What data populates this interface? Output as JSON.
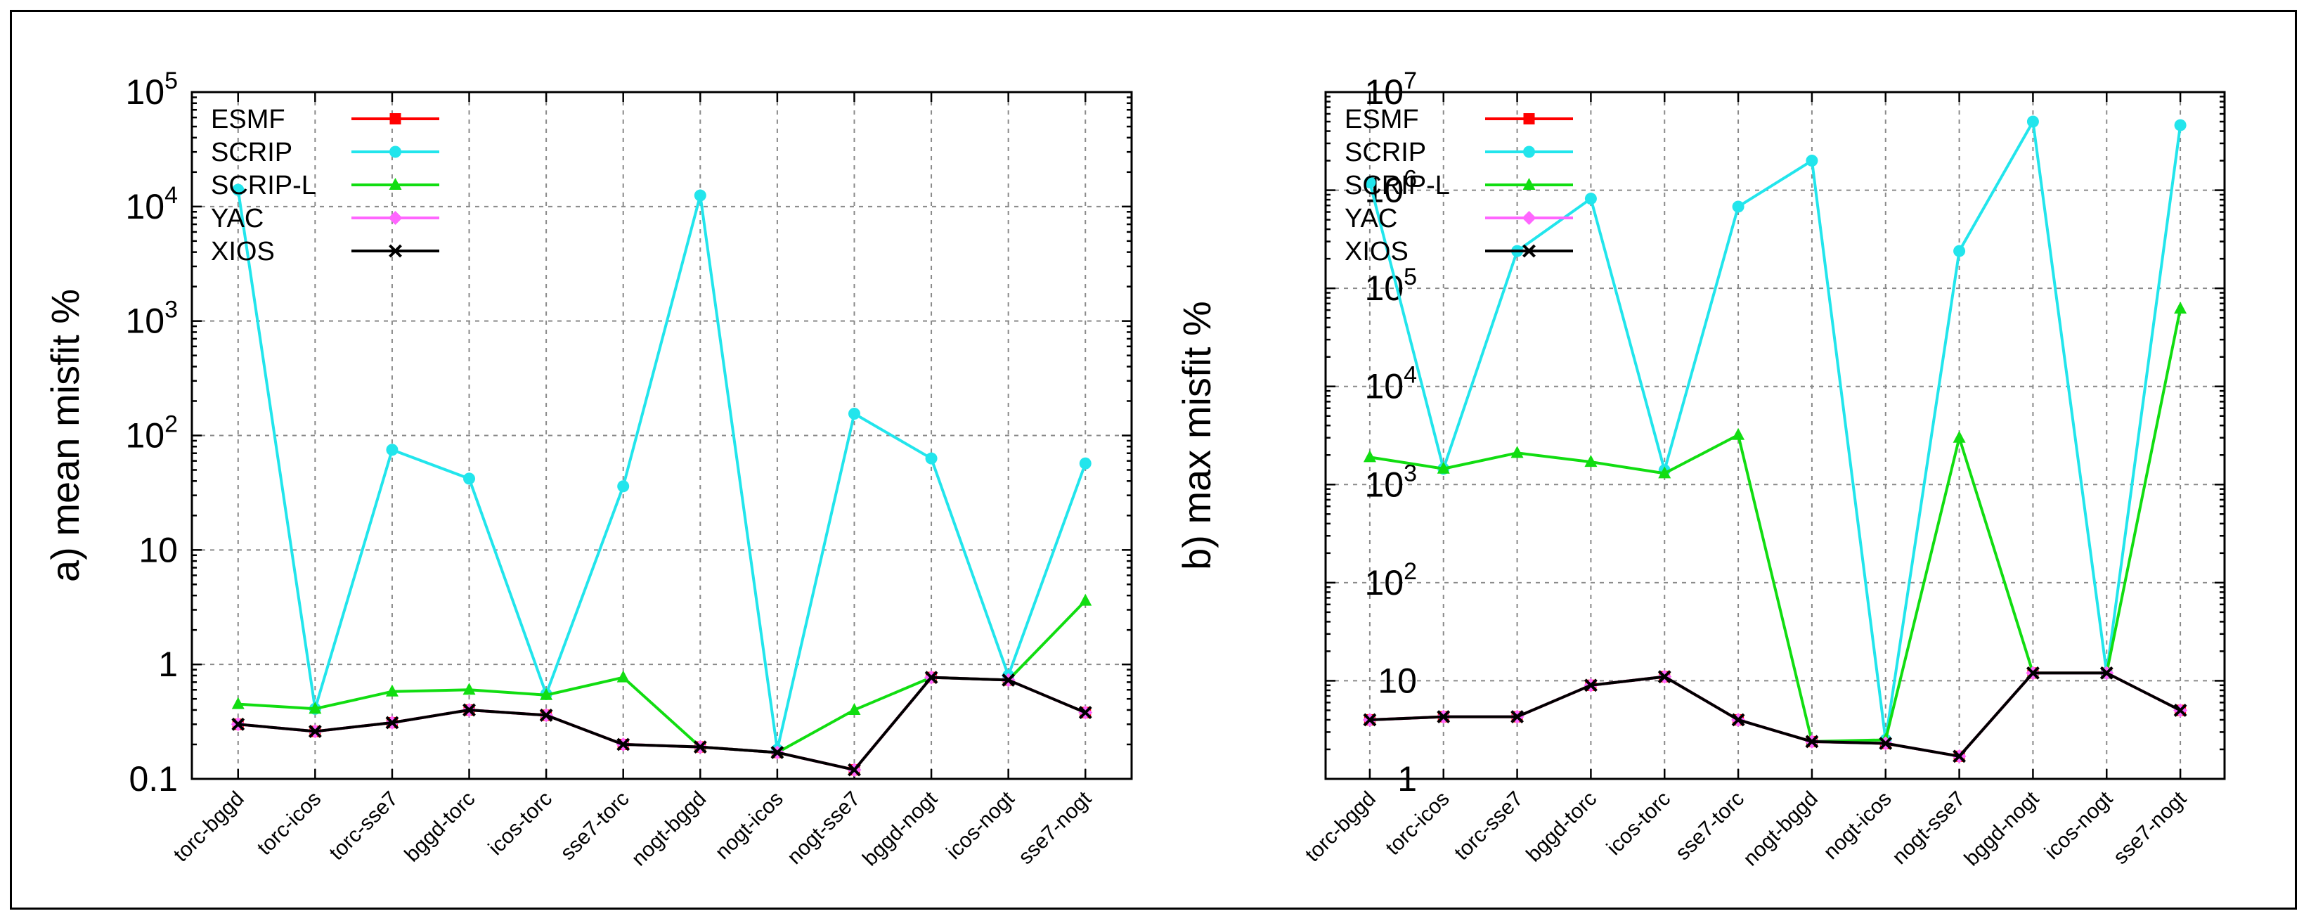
{
  "chart_data": [
    {
      "type": "line",
      "panel": "a",
      "ylabel": "a) mean misfit %",
      "yscale": "log",
      "ylim": [
        0.1,
        100000
      ],
      "ytick_labels": [
        {
          "value": 0.1,
          "base": "0.1",
          "exp": ""
        },
        {
          "value": 1,
          "base": "1",
          "exp": ""
        },
        {
          "value": 10,
          "base": "10",
          "exp": ""
        },
        {
          "value": 100,
          "base": "10",
          "exp": "2"
        },
        {
          "value": 1000,
          "base": "10",
          "exp": "3"
        },
        {
          "value": 10000,
          "base": "10",
          "exp": "4"
        },
        {
          "value": 100000,
          "base": "10",
          "exp": "5"
        }
      ],
      "categories": [
        "torc-bggd",
        "torc-icos",
        "torc-sse7",
        "bggd-torc",
        "icos-torc",
        "sse7-torc",
        "nogt-bggd",
        "nogt-icos",
        "nogt-sse7",
        "bggd-nogt",
        "icos-nogt",
        "sse7-nogt"
      ],
      "legend_position": "top-left",
      "series": [
        {
          "name": "ESMF",
          "color": "#ff0000",
          "marker": "square",
          "values": [
            0.3,
            0.26,
            0.31,
            0.4,
            0.36,
            0.2,
            0.19,
            0.17,
            0.12,
            0.77,
            0.73,
            0.38
          ]
        },
        {
          "name": "SCRIP",
          "color": "#22e5ec",
          "marker": "circle",
          "values": [
            14000,
            0.41,
            75,
            42,
            0.55,
            36,
            12500,
            0.18,
            155,
            63,
            0.8,
            57
          ]
        },
        {
          "name": "SCRIP-L",
          "color": "#11dd11",
          "marker": "triangle",
          "values": [
            0.45,
            0.41,
            0.58,
            0.6,
            0.54,
            0.77,
            0.19,
            0.17,
            0.4,
            0.77,
            0.73,
            3.6
          ]
        },
        {
          "name": "YAC",
          "color": "#ff66ff",
          "marker": "diamond",
          "values": [
            0.3,
            0.26,
            0.31,
            0.4,
            0.36,
            0.2,
            0.19,
            0.17,
            0.12,
            0.77,
            0.73,
            0.38
          ]
        },
        {
          "name": "XIOS",
          "color": "#000000",
          "marker": "x",
          "values": [
            0.3,
            0.26,
            0.31,
            0.4,
            0.36,
            0.2,
            0.19,
            0.17,
            0.12,
            0.77,
            0.73,
            0.38
          ]
        }
      ]
    },
    {
      "type": "line",
      "panel": "b",
      "ylabel": "b) max misfit %",
      "yscale": "log",
      "ylim": [
        1,
        10000000
      ],
      "ytick_labels": [
        {
          "value": 1,
          "base": "1",
          "exp": ""
        },
        {
          "value": 10,
          "base": "10",
          "exp": ""
        },
        {
          "value": 100,
          "base": "10",
          "exp": "2"
        },
        {
          "value": 1000,
          "base": "10",
          "exp": "3"
        },
        {
          "value": 10000,
          "base": "10",
          "exp": "4"
        },
        {
          "value": 100000,
          "base": "10",
          "exp": "5"
        },
        {
          "value": 1000000,
          "base": "10",
          "exp": "6"
        },
        {
          "value": 10000000,
          "base": "10",
          "exp": "7"
        }
      ],
      "categories": [
        "torc-bggd",
        "torc-icos",
        "torc-sse7",
        "bggd-torc",
        "icos-torc",
        "sse7-torc",
        "nogt-bggd",
        "nogt-icos",
        "nogt-sse7",
        "bggd-nogt",
        "icos-nogt",
        "sse7-nogt"
      ],
      "legend_position": "top-left",
      "series": [
        {
          "name": "ESMF",
          "color": "#ff0000",
          "marker": "square",
          "values": [
            4,
            4.3,
            4.3,
            9,
            11,
            4,
            2.4,
            2.3,
            1.7,
            12,
            12,
            5
          ]
        },
        {
          "name": "SCRIP",
          "color": "#22e5ec",
          "marker": "circle",
          "values": [
            1200000,
            1450,
            240000,
            820000,
            1400,
            680000,
            2000000,
            2.5,
            240000,
            5000000,
            12,
            4600000
          ]
        },
        {
          "name": "SCRIP-L",
          "color": "#11dd11",
          "marker": "triangle",
          "values": [
            1900,
            1450,
            2100,
            1700,
            1300,
            3200,
            2.4,
            2.5,
            3000,
            12,
            12,
            62000
          ]
        },
        {
          "name": "YAC",
          "color": "#ff66ff",
          "marker": "diamond",
          "values": [
            4,
            4.3,
            4.3,
            9,
            11,
            4,
            2.4,
            2.3,
            1.7,
            12,
            12,
            5
          ]
        },
        {
          "name": "XIOS",
          "color": "#000000",
          "marker": "x",
          "values": [
            4,
            4.3,
            4.3,
            9,
            11,
            4,
            2.4,
            2.3,
            1.7,
            12,
            12,
            5
          ]
        }
      ]
    }
  ]
}
